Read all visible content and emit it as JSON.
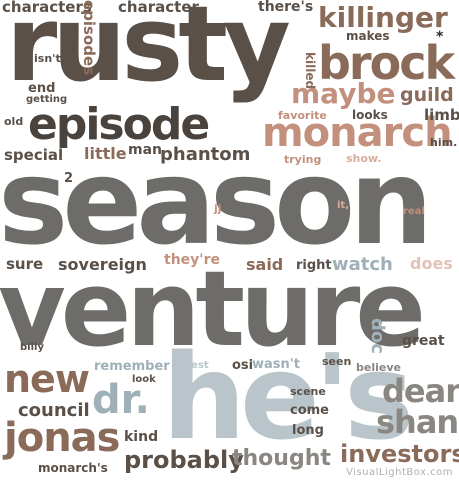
{
  "words": {
    "rusty": "rusty",
    "season": "season",
    "venture": "venture",
    "hes": "he's",
    "episode": "episode",
    "monarch": "monarch",
    "brock": "brock",
    "killinger": "killinger",
    "maybe": "maybe",
    "new": "new",
    "jonas": "jonas",
    "dr": "dr.",
    "dean": "dean",
    "shank": "shank",
    "investors": "investors",
    "probably": "probably",
    "thought": "thought",
    "council": "council",
    "characters": "characters",
    "episodes": "episodes",
    "character": "character",
    "theres": "there's",
    "makes": "makes",
    "asterisk": "*",
    "isnt": "isn't",
    "end": "end",
    "getting": "getting",
    "old": "old",
    "killed": "killed",
    "favorite": "favorite",
    "looks": "looks",
    "guild": "guild",
    "limb": "limb",
    "him": "him.",
    "special": "special",
    "little": "little",
    "man": "man",
    "phantom": "phantom",
    "trying": "trying",
    "show": "show.",
    "two": "2",
    "jj": "jj",
    "it": "it,",
    "real": "real",
    "sure": "sure",
    "sovereign": "sovereign",
    "theyre": "they're",
    "said": "said",
    "right": "right",
    "watch": "watch",
    "does": "does",
    "doc": "doc",
    "great": "great",
    "billy": "billy",
    "remember": "remember",
    "look": "look",
    "best": "best",
    "osi": "osi",
    "wasnt": "wasn't",
    "seen": "seen",
    "believe": "believe",
    "scene": "scene",
    "come": "come",
    "long": "long",
    "kind": "kind",
    "monarchs": "monarch's"
  },
  "credit": "VisualLightBox.com"
}
